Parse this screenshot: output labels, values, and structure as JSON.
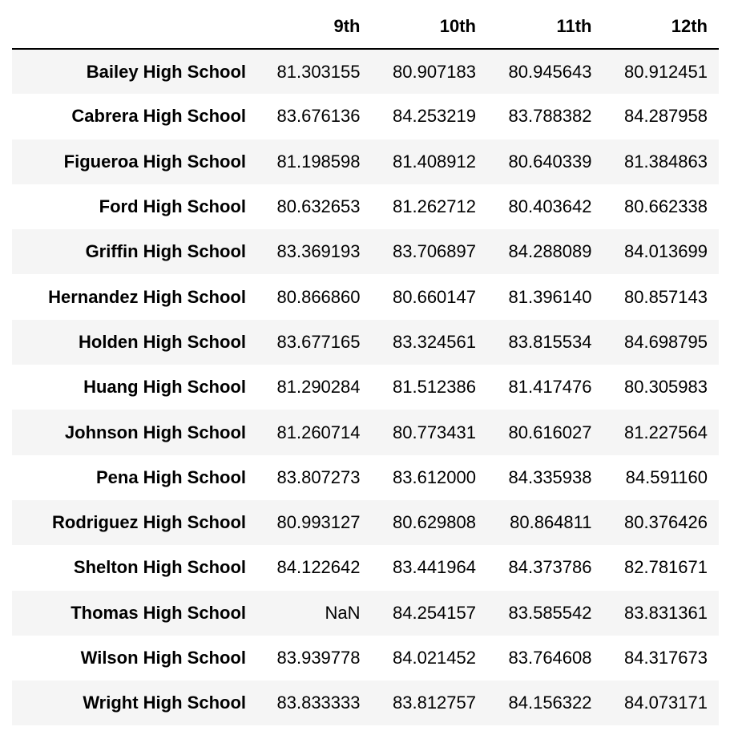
{
  "table": {
    "index_header": "",
    "columns": [
      "9th",
      "10th",
      "11th",
      "12th"
    ],
    "rows": [
      {
        "school": "Bailey High School",
        "values": [
          "81.303155",
          "80.907183",
          "80.945643",
          "80.912451"
        ]
      },
      {
        "school": "Cabrera High School",
        "values": [
          "83.676136",
          "84.253219",
          "83.788382",
          "84.287958"
        ]
      },
      {
        "school": "Figueroa High School",
        "values": [
          "81.198598",
          "81.408912",
          "80.640339",
          "81.384863"
        ]
      },
      {
        "school": "Ford High School",
        "values": [
          "80.632653",
          "81.262712",
          "80.403642",
          "80.662338"
        ]
      },
      {
        "school": "Griffin High School",
        "values": [
          "83.369193",
          "83.706897",
          "84.288089",
          "84.013699"
        ]
      },
      {
        "school": "Hernandez High School",
        "values": [
          "80.866860",
          "80.660147",
          "81.396140",
          "80.857143"
        ]
      },
      {
        "school": "Holden High School",
        "values": [
          "83.677165",
          "83.324561",
          "83.815534",
          "84.698795"
        ]
      },
      {
        "school": "Huang High School",
        "values": [
          "81.290284",
          "81.512386",
          "81.417476",
          "80.305983"
        ]
      },
      {
        "school": "Johnson High School",
        "values": [
          "81.260714",
          "80.773431",
          "80.616027",
          "81.227564"
        ]
      },
      {
        "school": "Pena High School",
        "values": [
          "83.807273",
          "83.612000",
          "84.335938",
          "84.591160"
        ]
      },
      {
        "school": "Rodriguez High School",
        "values": [
          "80.993127",
          "80.629808",
          "80.864811",
          "80.376426"
        ]
      },
      {
        "school": "Shelton High School",
        "values": [
          "84.122642",
          "83.441964",
          "84.373786",
          "82.781671"
        ]
      },
      {
        "school": "Thomas High School",
        "values": [
          "NaN",
          "84.254157",
          "83.585542",
          "83.831361"
        ]
      },
      {
        "school": "Wilson High School",
        "values": [
          "83.939778",
          "84.021452",
          "83.764608",
          "84.317673"
        ]
      },
      {
        "school": "Wright High School",
        "values": [
          "83.833333",
          "83.812757",
          "84.156322",
          "84.073171"
        ]
      }
    ]
  }
}
